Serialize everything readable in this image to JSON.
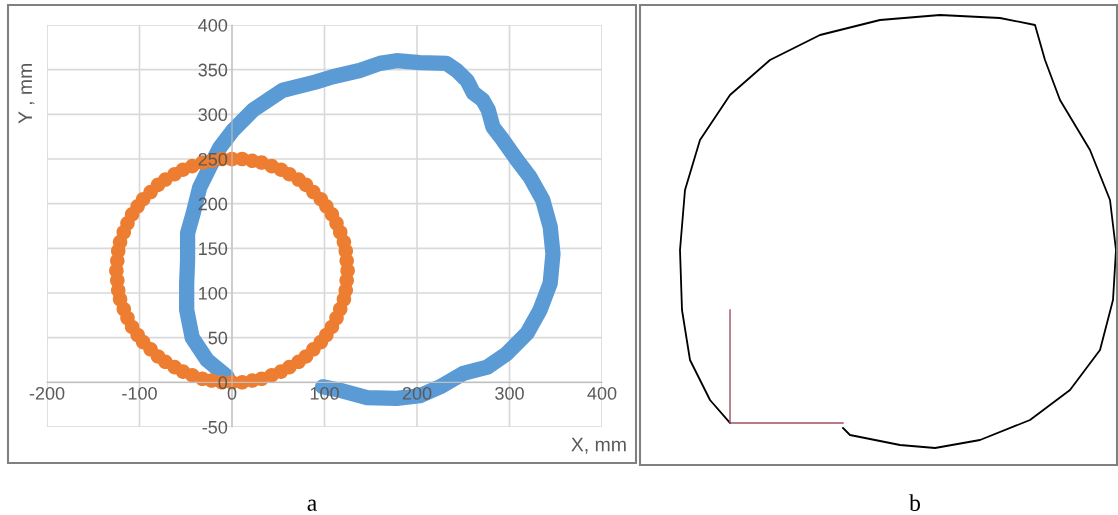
{
  "chart_data": {
    "type": "scatter",
    "xlabel": "X, mm",
    "ylabel": "Y , mm",
    "xlim": [
      -200,
      400
    ],
    "xticks": [
      -200,
      -100,
      0,
      100,
      200,
      300,
      400
    ],
    "ylim": [
      -50,
      400
    ],
    "yticks": [
      -50,
      0,
      50,
      100,
      150,
      200,
      250,
      300,
      350,
      400
    ],
    "grid": true,
    "legend": false,
    "series": [
      {
        "type": "line",
        "color": "#5b9bd5",
        "line_style": "solid",
        "marker": "none",
        "x": [
          98,
          117,
          146,
          178,
          203,
          225,
          250,
          276,
          297,
          319,
          333,
          344,
          347,
          344,
          336,
          322,
          308,
          293,
          282,
          277,
          271,
          261,
          254,
          243,
          232,
          203,
          178,
          160,
          138,
          109,
          90,
          55,
          23,
          1,
          -13,
          -24,
          -35,
          -42,
          -48,
          -48,
          -49,
          -49,
          -43,
          -27,
          -5
        ],
        "values": [
          -5,
          -9,
          -17,
          -18,
          -15,
          -5,
          10,
          17,
          32,
          55,
          81,
          111,
          144,
          174,
          204,
          230,
          249,
          271,
          286,
          305,
          316,
          324,
          338,
          349,
          357,
          358,
          360,
          357,
          349,
          342,
          336,
          327,
          305,
          282,
          263,
          241,
          218,
          189,
          167,
          137,
          111,
          81,
          50,
          25,
          6
        ]
      },
      {
        "color": "#ed7d31",
        "marker": "circle",
        "x": [
          125,
          124,
          123,
          121,
          117,
          113,
          108,
          102,
          96,
          88,
          80,
          72,
          62,
          53,
          43,
          32,
          22,
          11,
          0,
          -11,
          -22,
          -32,
          -43,
          -53,
          -62,
          -72,
          -80,
          -88,
          -96,
          -102,
          -108,
          -113,
          -117,
          -121,
          -123,
          -124,
          -125,
          -124,
          -123,
          -121,
          -117,
          -113,
          -108,
          -102,
          -96,
          -88,
          -80,
          -72,
          -62,
          -53,
          -43,
          -32,
          -22,
          -11,
          0,
          11,
          22,
          32,
          43,
          53,
          62,
          72,
          80,
          88,
          96,
          102,
          108,
          113,
          117,
          121,
          123,
          124
        ],
        "values": [
          125,
          136,
          147,
          157,
          168,
          178,
          188,
          197,
          205,
          213,
          221,
          227,
          233,
          238,
          242,
          246,
          248,
          250,
          250,
          250,
          248,
          246,
          242,
          238,
          233,
          227,
          221,
          213,
          205,
          197,
          188,
          178,
          168,
          157,
          147,
          136,
          125,
          114,
          103,
          93,
          82,
          72,
          62,
          53,
          45,
          37,
          29,
          23,
          17,
          12,
          8,
          4,
          2,
          0,
          0,
          0,
          2,
          4,
          8,
          12,
          17,
          23,
          29,
          37,
          45,
          53,
          62,
          72,
          82,
          93,
          103,
          114
        ]
      }
    ],
    "annotations": [
      "a",
      "b"
    ]
  }
}
